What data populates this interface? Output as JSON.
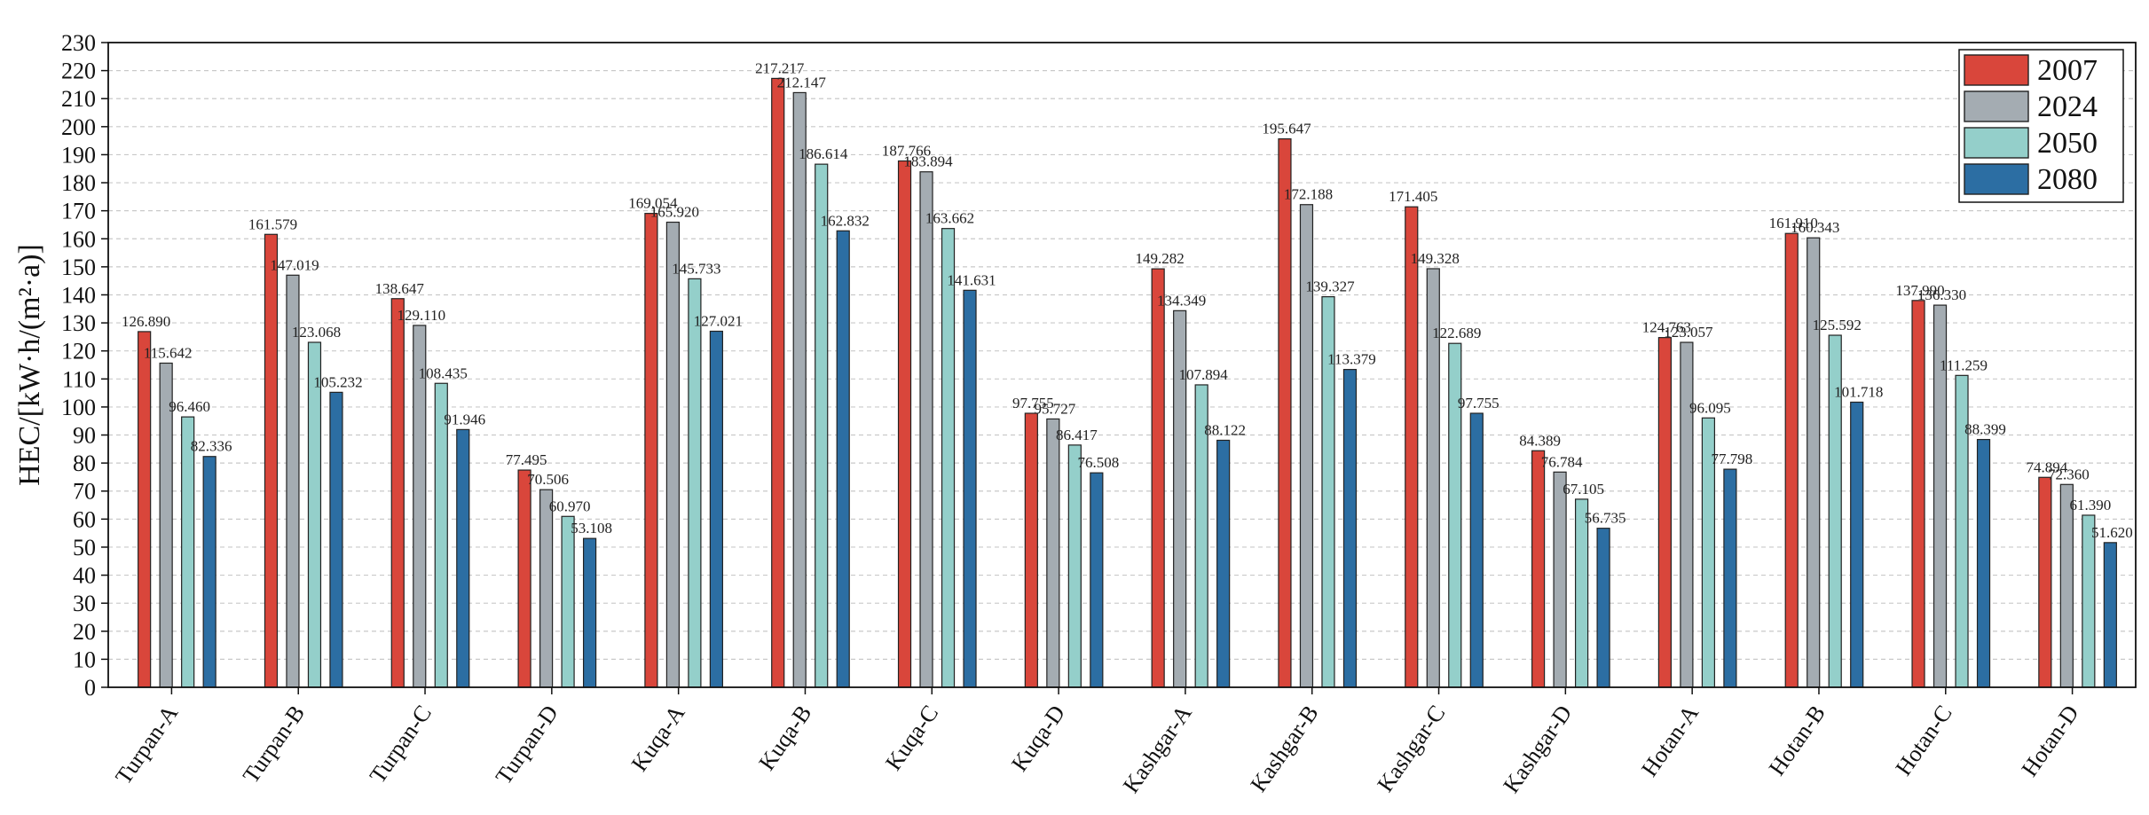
{
  "chart_data": {
    "type": "bar",
    "title": "",
    "xlabel": "",
    "ylabel": "HEC/[kW·h/(m²·a)]",
    "ylim": [
      0,
      230
    ],
    "ytick_step": 10,
    "grid": true,
    "legend_position": "top-right",
    "categories": [
      "Turpan-A",
      "Turpan-B",
      "Turpan-C",
      "Turpan-D",
      "Kuqa-A",
      "Kuqa-B",
      "Kuqa-C",
      "Kuqa-D",
      "Kashgar-A",
      "Kashgar-B",
      "Kashgar-C",
      "Kashgar-D",
      "Hotan-A",
      "Hotan-B",
      "Hotan-C",
      "Hotan-D"
    ],
    "series": [
      {
        "name": "2007",
        "color": "#d9463b",
        "values": [
          126.89,
          161.579,
          138.647,
          77.495,
          169.054,
          217.217,
          187.766,
          97.755,
          149.282,
          195.647,
          171.405,
          84.389,
          124.763,
          161.91,
          137.99,
          74.894
        ],
        "labels": [
          "126.890",
          "161.579",
          "138.647",
          "77.495",
          "169.054",
          "217.217",
          "187.766",
          "97.755",
          "149.282",
          "195.647",
          "171.405",
          "84.389",
          "124.763",
          "161.910",
          "137.990",
          "74.894"
        ]
      },
      {
        "name": "2024",
        "color": "#a4acb2",
        "values": [
          115.642,
          147.019,
          129.11,
          70.506,
          165.92,
          212.147,
          183.894,
          95.727,
          134.349,
          172.188,
          149.328,
          76.784,
          123.057,
          160.343,
          136.33,
          72.36
        ],
        "labels": [
          "115.642",
          "147.019",
          "129.110",
          "70.506",
          "165.920",
          "212.147",
          "183.894",
          "95.727",
          "134.349",
          "172.188",
          "149.328",
          "76.784",
          "123.057",
          "160.343",
          "136.330",
          "72.360"
        ]
      },
      {
        "name": "2050",
        "color": "#94cfca",
        "values": [
          96.46,
          123.068,
          108.435,
          60.97,
          145.733,
          186.614,
          163.662,
          86.417,
          107.894,
          139.327,
          122.689,
          67.105,
          96.095,
          125.592,
          111.259,
          61.39
        ],
        "labels": [
          "96.460",
          "123.068",
          "108.435",
          "60.970",
          "145.733",
          "186.614",
          "163.662",
          "86.417",
          "107.894",
          "139.327",
          "122.689",
          "67.105",
          "96.095",
          "125.592",
          "111.259",
          "61.390"
        ]
      },
      {
        "name": "2080",
        "color": "#2c6ea3",
        "values": [
          82.336,
          105.232,
          91.946,
          53.108,
          127.021,
          162.832,
          141.631,
          76.508,
          88.122,
          113.379,
          97.755,
          56.735,
          77.798,
          101.718,
          88.399,
          51.62
        ],
        "labels": [
          "82.336",
          "105.232",
          "91.946",
          "53.108",
          "127.021",
          "162.832",
          "141.631",
          "76.508",
          "88.122",
          "113.379",
          "97.755",
          "56.735",
          "77.798",
          "101.718",
          "88.399",
          "51.620"
        ]
      }
    ]
  }
}
